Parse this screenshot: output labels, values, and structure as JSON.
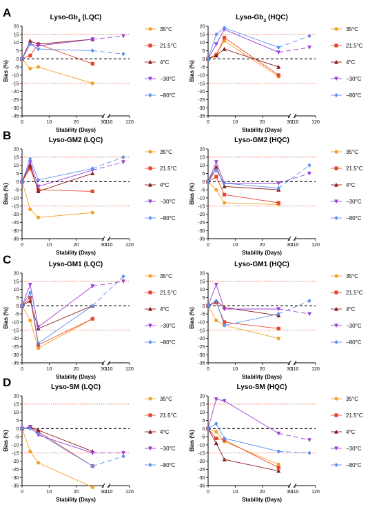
{
  "figure": {
    "common": {
      "xlabel": "Stability (Days)",
      "ylabel": "Bias (%)",
      "x_ticks": [
        0,
        10,
        20,
        30,
        110,
        120
      ],
      "y_ticks": [
        -35,
        -30,
        -25,
        -20,
        -15,
        -10,
        -5,
        0,
        5,
        10,
        15,
        20
      ],
      "y_limits": [
        -35,
        20
      ],
      "x_break_between": [
        30,
        110
      ],
      "acceptance_limits": [
        15,
        -15
      ],
      "reference_line": 0,
      "series_styles": [
        {
          "name": "35°C",
          "color": "#f5a023",
          "marker": "circle"
        },
        {
          "name": "21.5°C",
          "color": "#e8432b",
          "marker": "square"
        },
        {
          "name": "4°C",
          "color": "#8b1a1a",
          "marker": "triangle-up"
        },
        {
          "name": "−30°C",
          "color": "#9b3fd6",
          "marker": "triangle-down"
        },
        {
          "name": "−80°C",
          "color": "#5b8ff0",
          "marker": "diamond"
        }
      ]
    }
  },
  "chart_data": [
    {
      "panel": "A",
      "type": "line",
      "title": "Lyso-Gb₃ (LQC)",
      "series": [
        {
          "name": "35°C",
          "x": [
            0,
            3,
            6,
            26
          ],
          "y": [
            0,
            -6,
            -5,
            -15
          ]
        },
        {
          "name": "21.5°C",
          "x": [
            0,
            3,
            6,
            26
          ],
          "y": [
            0,
            2,
            9,
            -3
          ]
        },
        {
          "name": "4°C",
          "x": [
            0,
            3,
            6,
            26
          ],
          "y": [
            0,
            11,
            9,
            12
          ]
        },
        {
          "name": "−30°C",
          "x": [
            0,
            3,
            6,
            26,
            117
          ],
          "y": [
            0,
            9,
            8,
            12,
            14
          ]
        },
        {
          "name": "−80°C",
          "x": [
            0,
            3,
            6,
            26,
            117
          ],
          "y": [
            0,
            9,
            6,
            5,
            3
          ]
        }
      ]
    },
    {
      "panel": "",
      "type": "line",
      "title": "Lyso-Gb₃ (HQC)",
      "series": [
        {
          "name": "35°C",
          "x": [
            0,
            3,
            6,
            26
          ],
          "y": [
            0,
            3,
            11,
            -11
          ]
        },
        {
          "name": "21.5°C",
          "x": [
            0,
            3,
            6,
            26
          ],
          "y": [
            0,
            2,
            13,
            -10
          ]
        },
        {
          "name": "4°C",
          "x": [
            0,
            3,
            6,
            26
          ],
          "y": [
            0,
            2,
            6,
            -5
          ]
        },
        {
          "name": "−30°C",
          "x": [
            0,
            3,
            6,
            26,
            117
          ],
          "y": [
            0,
            9,
            18,
            4,
            7
          ]
        },
        {
          "name": "−80°C",
          "x": [
            0,
            3,
            6,
            26,
            117
          ],
          "y": [
            0,
            15,
            19,
            7,
            14
          ]
        }
      ]
    },
    {
      "panel": "B",
      "type": "line",
      "title": "Lyso-GM2 (LQC)",
      "series": [
        {
          "name": "35°C",
          "x": [
            0,
            3,
            6,
            26
          ],
          "y": [
            0,
            -17,
            -22,
            -19
          ]
        },
        {
          "name": "21.5°C",
          "x": [
            0,
            3,
            6,
            26
          ],
          "y": [
            0,
            8,
            -5,
            -6
          ]
        },
        {
          "name": "4°C",
          "x": [
            0,
            3,
            6,
            26
          ],
          "y": [
            0,
            10,
            -6,
            5
          ]
        },
        {
          "name": "−30°C",
          "x": [
            0,
            3,
            6,
            26,
            117
          ],
          "y": [
            0,
            12,
            -3,
            7,
            12
          ]
        },
        {
          "name": "−80°C",
          "x": [
            0,
            3,
            6,
            26,
            117
          ],
          "y": [
            0,
            14,
            1,
            8,
            15
          ]
        }
      ]
    },
    {
      "panel": "",
      "type": "line",
      "title": "Lyso-GM2 (HQC)",
      "series": [
        {
          "name": "35°C",
          "x": [
            0,
            3,
            6,
            26
          ],
          "y": [
            0,
            -5,
            -13,
            -14
          ]
        },
        {
          "name": "21.5°C",
          "x": [
            0,
            3,
            6,
            26
          ],
          "y": [
            0,
            3,
            -8,
            -13
          ]
        },
        {
          "name": "4°C",
          "x": [
            0,
            3,
            6,
            26
          ],
          "y": [
            0,
            9,
            -3,
            -5
          ]
        },
        {
          "name": "−30°C",
          "x": [
            0,
            3,
            6,
            26,
            117
          ],
          "y": [
            0,
            12,
            -1,
            -1,
            5
          ]
        },
        {
          "name": "−80°C",
          "x": [
            0,
            3,
            6,
            26,
            117
          ],
          "y": [
            0,
            7,
            -1,
            -4,
            10
          ]
        }
      ]
    },
    {
      "panel": "C",
      "type": "line",
      "title": "Lyso-GM1 (LQC)",
      "series": [
        {
          "name": "35°C",
          "x": [
            0,
            3,
            6,
            26
          ],
          "y": [
            0,
            -9,
            -26,
            -8
          ]
        },
        {
          "name": "21.5°C",
          "x": [
            0,
            3,
            6,
            26
          ],
          "y": [
            0,
            5,
            -24,
            -8
          ]
        },
        {
          "name": "4°C",
          "x": [
            0,
            3,
            6,
            26
          ],
          "y": [
            0,
            3,
            -14,
            0
          ]
        },
        {
          "name": "−30°C",
          "x": [
            0,
            3,
            6,
            26,
            117
          ],
          "y": [
            0,
            13,
            -13,
            12,
            15
          ]
        },
        {
          "name": "−80°C",
          "x": [
            0,
            3,
            6,
            26,
            117
          ],
          "y": [
            0,
            8,
            -23,
            0,
            18
          ]
        }
      ]
    },
    {
      "panel": "",
      "type": "line",
      "title": "Lyso-GM1 (HQC)",
      "series": [
        {
          "name": "35°C",
          "x": [
            0,
            3,
            6,
            26
          ],
          "y": [
            0,
            -9,
            -12,
            -20
          ]
        },
        {
          "name": "21.5°C",
          "x": [
            0,
            3,
            6,
            26
          ],
          "y": [
            0,
            2,
            -10,
            -14
          ]
        },
        {
          "name": "4°C",
          "x": [
            0,
            3,
            6,
            26
          ],
          "y": [
            0,
            3,
            -1,
            -6
          ]
        },
        {
          "name": "−30°C",
          "x": [
            0,
            3,
            6,
            26,
            117
          ],
          "y": [
            0,
            13,
            -2,
            -2,
            -5
          ]
        },
        {
          "name": "−80°C",
          "x": [
            0,
            3,
            6,
            26,
            117
          ],
          "y": [
            0,
            3,
            -12,
            -5,
            3
          ]
        }
      ]
    },
    {
      "panel": "D",
      "type": "line",
      "title": "Lyso-SM (LQC)",
      "series": [
        {
          "name": "35°C",
          "x": [
            0,
            3,
            6,
            26
          ],
          "y": [
            0,
            -14,
            -21,
            -36
          ]
        },
        {
          "name": "21.5°C",
          "x": [
            0,
            3,
            6,
            26
          ],
          "y": [
            0,
            1,
            -2,
            -23
          ]
        },
        {
          "name": "4°C",
          "x": [
            0,
            3,
            6,
            26
          ],
          "y": [
            0,
            1,
            -1,
            -14
          ]
        },
        {
          "name": "−30°C",
          "x": [
            0,
            3,
            6,
            26,
            117
          ],
          "y": [
            0,
            1,
            -4,
            -15,
            -15
          ]
        },
        {
          "name": "−80°C",
          "x": [
            0,
            3,
            6,
            26,
            117
          ],
          "y": [
            0,
            0,
            -3,
            -23,
            -17
          ]
        }
      ]
    },
    {
      "panel": "",
      "type": "line",
      "title": "Lyso-SM (HQC)",
      "series": [
        {
          "name": "35°C",
          "x": [
            0,
            3,
            6,
            26
          ],
          "y": [
            0,
            -2,
            -8,
            -22
          ]
        },
        {
          "name": "21.5°C",
          "x": [
            0,
            3,
            6,
            26
          ],
          "y": [
            0,
            -6,
            -7,
            -24
          ]
        },
        {
          "name": "4°C",
          "x": [
            0,
            3,
            6,
            26
          ],
          "y": [
            0,
            -9,
            -19,
            -26
          ]
        },
        {
          "name": "−30°C",
          "x": [
            0,
            3,
            6,
            26,
            117
          ],
          "y": [
            0,
            18,
            17,
            -3,
            -7
          ]
        },
        {
          "name": "−80°C",
          "x": [
            0,
            3,
            6,
            26,
            117
          ],
          "y": [
            0,
            3,
            -6,
            -14,
            -15
          ]
        }
      ]
    }
  ]
}
